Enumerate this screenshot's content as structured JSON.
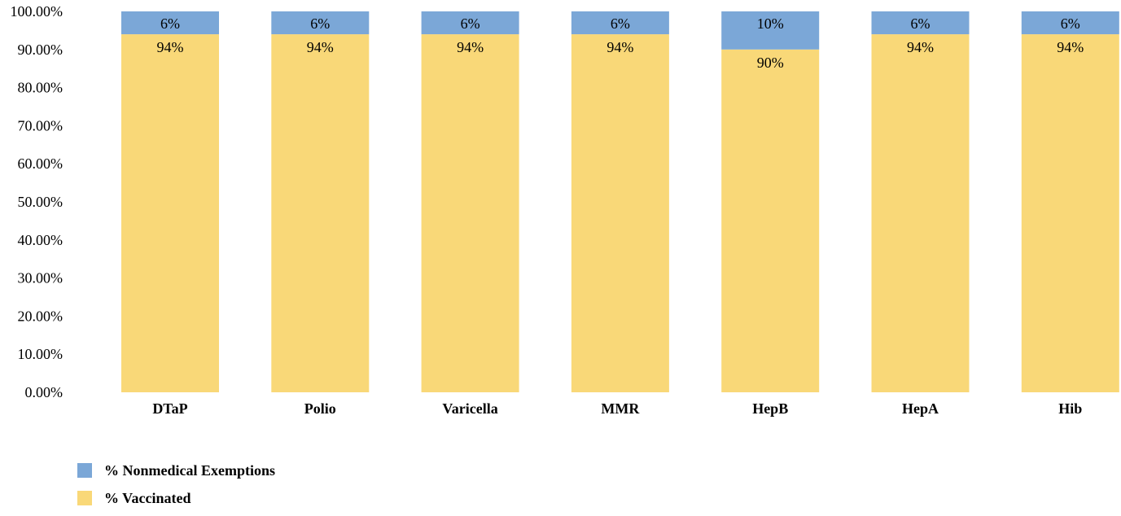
{
  "chart_data": {
    "type": "bar",
    "stacked": true,
    "categories": [
      "DTaP",
      "Polio",
      "Varicella",
      "MMR",
      "HepB",
      "HepA",
      "Hib"
    ],
    "series": [
      {
        "name": "% Vaccinated",
        "color": "#F9D878",
        "values": [
          94,
          94,
          94,
          94,
          90,
          94,
          94
        ],
        "labels": [
          "94%",
          "94%",
          "94%",
          "94%",
          "90%",
          "94%",
          "94%"
        ]
      },
      {
        "name": "% Nonmedical Exemptions",
        "color": "#7BA7D7",
        "values": [
          6,
          6,
          6,
          6,
          10,
          6,
          6
        ],
        "labels": [
          "6%",
          "6%",
          "6%",
          "6%",
          "10%",
          "6%",
          "6%"
        ]
      }
    ],
    "yticks": [
      "0.00%",
      "10.00%",
      "20.00%",
      "30.00%",
      "40.00%",
      "50.00%",
      "60.00%",
      "70.00%",
      "80.00%",
      "90.00%",
      "100.00%"
    ],
    "ylim": [
      0,
      100
    ],
    "grid": false,
    "legend": {
      "placement": "bottom-left",
      "order": [
        "% Nonmedical Exemptions",
        "% Vaccinated"
      ]
    }
  }
}
